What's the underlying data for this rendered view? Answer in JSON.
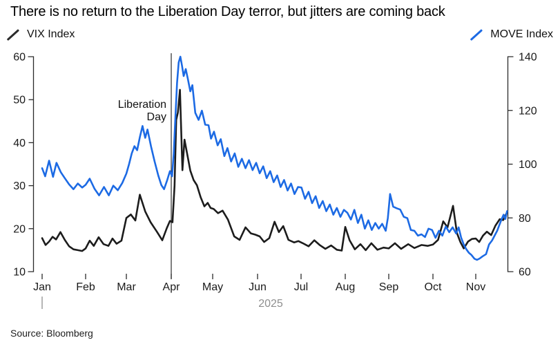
{
  "title": "There is no return to the Liberation Day terror, but jitters are coming back",
  "source": "Source: Bloomberg",
  "legend": {
    "left": {
      "label": "VIX Index",
      "color": "#2b2b2b"
    },
    "right": {
      "label": "MOVE Index",
      "color": "#1c6ae4"
    }
  },
  "chart_data": {
    "type": "line",
    "title": "There is no return to the Liberation Day terror, but jitters are coming back",
    "x_unit": "months_since_jan_1_2025",
    "x_axis": {
      "tick_labels": [
        "Jan",
        "Feb",
        "Mar",
        "Apr",
        "May",
        "Jun",
        "Jul",
        "Aug",
        "Sep",
        "Oct",
        "Nov"
      ],
      "year_label": "2025"
    },
    "left_axis": {
      "series": "VIX Index",
      "range": [
        10,
        60
      ],
      "ticks": [
        10,
        20,
        30,
        40,
        50,
        60
      ]
    },
    "right_axis": {
      "series": "MOVE Index",
      "range": [
        60,
        140
      ],
      "ticks": [
        60,
        80,
        100,
        120,
        140
      ]
    },
    "annotation": {
      "text_lines": [
        "Liberation",
        "Day"
      ],
      "x_month": 3.0
    },
    "grid": false,
    "colors": {
      "vix": "#1c1c1c",
      "move": "#1c6ae4",
      "axis": "#2a2a2a",
      "muted": "#8e8e8e"
    },
    "series": [
      {
        "name": "VIX Index",
        "axis": "left",
        "color": "#1c1c1c",
        "points": [
          [
            0.0,
            17.8
          ],
          [
            0.08,
            16.2
          ],
          [
            0.16,
            17.0
          ],
          [
            0.24,
            18.1
          ],
          [
            0.32,
            17.5
          ],
          [
            0.42,
            19.2
          ],
          [
            0.52,
            17.4
          ],
          [
            0.62,
            15.9
          ],
          [
            0.72,
            15.2
          ],
          [
            0.82,
            15.0
          ],
          [
            0.92,
            14.8
          ],
          [
            1.0,
            15.4
          ],
          [
            1.1,
            17.2
          ],
          [
            1.2,
            16.0
          ],
          [
            1.32,
            18.0
          ],
          [
            1.44,
            16.4
          ],
          [
            1.56,
            16.0
          ],
          [
            1.66,
            17.7
          ],
          [
            1.76,
            16.5
          ],
          [
            1.88,
            17.2
          ],
          [
            2.0,
            22.5
          ],
          [
            2.1,
            23.3
          ],
          [
            2.2,
            21.9
          ],
          [
            2.3,
            27.9
          ],
          [
            2.42,
            24.0
          ],
          [
            2.54,
            21.5
          ],
          [
            2.68,
            19.3
          ],
          [
            2.8,
            17.3
          ],
          [
            2.9,
            20.1
          ],
          [
            2.97,
            21.8
          ],
          [
            3.03,
            21.5
          ],
          [
            3.08,
            30.0
          ],
          [
            3.12,
            45.3
          ],
          [
            3.16,
            47.0
          ],
          [
            3.21,
            52.3
          ],
          [
            3.27,
            33.6
          ],
          [
            3.32,
            40.7
          ],
          [
            3.38,
            37.6
          ],
          [
            3.46,
            33.5
          ],
          [
            3.54,
            31.3
          ],
          [
            3.62,
            30.1
          ],
          [
            3.71,
            27.3
          ],
          [
            3.8,
            25.2
          ],
          [
            3.88,
            26.0
          ],
          [
            3.95,
            24.8
          ],
          [
            4.02,
            24.6
          ],
          [
            4.12,
            23.6
          ],
          [
            4.22,
            24.2
          ],
          [
            4.34,
            22.1
          ],
          [
            4.48,
            18.2
          ],
          [
            4.6,
            17.4
          ],
          [
            4.73,
            20.3
          ],
          [
            4.85,
            18.9
          ],
          [
            4.95,
            18.6
          ],
          [
            5.05,
            18.2
          ],
          [
            5.15,
            16.9
          ],
          [
            5.27,
            17.8
          ],
          [
            5.39,
            21.6
          ],
          [
            5.49,
            19.2
          ],
          [
            5.59,
            20.6
          ],
          [
            5.71,
            17.4
          ],
          [
            5.84,
            16.8
          ],
          [
            5.94,
            17.1
          ],
          [
            6.04,
            16.6
          ],
          [
            6.17,
            15.9
          ],
          [
            6.3,
            17.3
          ],
          [
            6.42,
            16.2
          ],
          [
            6.55,
            15.3
          ],
          [
            6.68,
            16.1
          ],
          [
            6.81,
            15.1
          ],
          [
            6.92,
            14.9
          ],
          [
            7.0,
            20.4
          ],
          [
            7.1,
            17.3
          ],
          [
            7.22,
            15.2
          ],
          [
            7.35,
            16.4
          ],
          [
            7.47,
            15.0
          ],
          [
            7.6,
            16.6
          ],
          [
            7.74,
            15.1
          ],
          [
            7.88,
            15.6
          ],
          [
            8.0,
            15.4
          ],
          [
            8.14,
            16.6
          ],
          [
            8.28,
            15.3
          ],
          [
            8.44,
            16.4
          ],
          [
            8.58,
            15.5
          ],
          [
            8.74,
            16.2
          ],
          [
            8.88,
            16.0
          ],
          [
            9.0,
            16.3
          ],
          [
            9.12,
            17.4
          ],
          [
            9.24,
            21.7
          ],
          [
            9.34,
            20.3
          ],
          [
            9.47,
            25.3
          ],
          [
            9.56,
            19.0
          ],
          [
            9.64,
            16.9
          ],
          [
            9.72,
            15.4
          ],
          [
            9.82,
            17.0
          ],
          [
            9.91,
            17.6
          ],
          [
            10.0,
            17.7
          ],
          [
            10.08,
            16.9
          ],
          [
            10.17,
            18.4
          ],
          [
            10.26,
            19.3
          ],
          [
            10.36,
            18.5
          ],
          [
            10.46,
            20.7
          ],
          [
            10.56,
            22.2
          ],
          [
            10.64,
            22.0
          ],
          [
            10.73,
            23.8
          ]
        ]
      },
      {
        "name": "MOVE Index",
        "axis": "right",
        "color": "#1c6ae4",
        "points": [
          [
            0.0,
            98.5
          ],
          [
            0.07,
            95.5
          ],
          [
            0.16,
            101.3
          ],
          [
            0.25,
            95.3
          ],
          [
            0.33,
            100.5
          ],
          [
            0.43,
            97.0
          ],
          [
            0.52,
            94.8
          ],
          [
            0.62,
            92.5
          ],
          [
            0.72,
            90.7
          ],
          [
            0.82,
            92.8
          ],
          [
            0.92,
            91.3
          ],
          [
            1.0,
            92.3
          ],
          [
            1.1,
            94.6
          ],
          [
            1.22,
            90.8
          ],
          [
            1.33,
            88.4
          ],
          [
            1.45,
            91.5
          ],
          [
            1.57,
            88.4
          ],
          [
            1.68,
            92.0
          ],
          [
            1.79,
            90.3
          ],
          [
            1.9,
            93.0
          ],
          [
            2.0,
            96.5
          ],
          [
            2.06,
            100.0
          ],
          [
            2.12,
            104.0
          ],
          [
            2.18,
            106.7
          ],
          [
            2.24,
            105.2
          ],
          [
            2.3,
            110.0
          ],
          [
            2.36,
            114.2
          ],
          [
            2.42,
            109.8
          ],
          [
            2.47,
            112.9
          ],
          [
            2.55,
            106.5
          ],
          [
            2.63,
            101.0
          ],
          [
            2.71,
            95.8
          ],
          [
            2.78,
            92.2
          ],
          [
            2.84,
            90.7
          ],
          [
            2.91,
            94.1
          ],
          [
            2.97,
            97.4
          ],
          [
            3.02,
            95.5
          ],
          [
            3.06,
            104.0
          ],
          [
            3.1,
            117.3
          ],
          [
            3.14,
            130.2
          ],
          [
            3.18,
            137.9
          ],
          [
            3.22,
            140.0
          ],
          [
            3.26,
            136.6
          ],
          [
            3.3,
            132.8
          ],
          [
            3.35,
            135.4
          ],
          [
            3.4,
            131.8
          ],
          [
            3.46,
            127.1
          ],
          [
            3.51,
            129.4
          ],
          [
            3.58,
            119.1
          ],
          [
            3.66,
            116.5
          ],
          [
            3.74,
            119.9
          ],
          [
            3.82,
            114.7
          ],
          [
            3.9,
            114.5
          ],
          [
            3.96,
            109.5
          ],
          [
            4.03,
            112.1
          ],
          [
            4.11,
            107.0
          ],
          [
            4.18,
            109.3
          ],
          [
            4.26,
            103.0
          ],
          [
            4.33,
            106.0
          ],
          [
            4.41,
            101.0
          ],
          [
            4.49,
            104.0
          ],
          [
            4.57,
            99.0
          ],
          [
            4.65,
            102.0
          ],
          [
            4.73,
            98.5
          ],
          [
            4.81,
            101.5
          ],
          [
            4.89,
            97.8
          ],
          [
            4.97,
            100.5
          ],
          [
            5.05,
            96.6
          ],
          [
            5.13,
            99.2
          ],
          [
            5.21,
            94.8
          ],
          [
            5.29,
            97.4
          ],
          [
            5.37,
            93.3
          ],
          [
            5.45,
            95.8
          ],
          [
            5.53,
            91.5
          ],
          [
            5.61,
            94.1
          ],
          [
            5.69,
            90.2
          ],
          [
            5.77,
            92.8
          ],
          [
            5.85,
            88.9
          ],
          [
            5.93,
            91.5
          ],
          [
            6.01,
            91.3
          ],
          [
            6.09,
            87.1
          ],
          [
            6.17,
            89.7
          ],
          [
            6.25,
            85.5
          ],
          [
            6.33,
            88.1
          ],
          [
            6.41,
            83.7
          ],
          [
            6.49,
            86.3
          ],
          [
            6.57,
            82.5
          ],
          [
            6.65,
            85.0
          ],
          [
            6.73,
            81.2
          ],
          [
            6.81,
            83.7
          ],
          [
            6.89,
            80.4
          ],
          [
            6.97,
            83.0
          ],
          [
            7.05,
            81.9
          ],
          [
            7.13,
            79.4
          ],
          [
            7.21,
            83.0
          ],
          [
            7.29,
            78.1
          ],
          [
            7.37,
            81.2
          ],
          [
            7.45,
            76.0
          ],
          [
            7.53,
            79.1
          ],
          [
            7.61,
            75.5
          ],
          [
            7.69,
            78.1
          ],
          [
            7.77,
            76.0
          ],
          [
            7.85,
            77.8
          ],
          [
            7.93,
            75.2
          ],
          [
            7.98,
            80.0
          ],
          [
            8.03,
            88.9
          ],
          [
            8.1,
            84.2
          ],
          [
            8.18,
            83.6
          ],
          [
            8.26,
            83.1
          ],
          [
            8.34,
            80.4
          ],
          [
            8.42,
            79.9
          ],
          [
            8.5,
            75.5
          ],
          [
            8.58,
            75.2
          ],
          [
            8.66,
            73.4
          ],
          [
            8.74,
            73.9
          ],
          [
            8.82,
            72.9
          ],
          [
            8.9,
            76.0
          ],
          [
            8.98,
            75.5
          ],
          [
            9.06,
            72.6
          ],
          [
            9.14,
            75.2
          ],
          [
            9.22,
            73.4
          ],
          [
            9.3,
            76.8
          ],
          [
            9.38,
            74.7
          ],
          [
            9.46,
            76.5
          ],
          [
            9.54,
            74.2
          ],
          [
            9.6,
            76.5
          ],
          [
            9.66,
            72.6
          ],
          [
            9.72,
            70.1
          ],
          [
            9.78,
            68.3
          ],
          [
            9.84,
            67.0
          ],
          [
            9.9,
            66.2
          ],
          [
            9.97,
            64.8
          ],
          [
            10.03,
            64.4
          ],
          [
            10.09,
            64.9
          ],
          [
            10.16,
            65.7
          ],
          [
            10.24,
            66.5
          ],
          [
            10.31,
            70.1
          ],
          [
            10.38,
            71.6
          ],
          [
            10.44,
            73.4
          ],
          [
            10.5,
            75.2
          ],
          [
            10.55,
            77.3
          ],
          [
            10.6,
            79.4
          ],
          [
            10.65,
            81.2
          ],
          [
            10.69,
            79.6
          ],
          [
            10.73,
            82.5
          ]
        ]
      }
    ]
  }
}
